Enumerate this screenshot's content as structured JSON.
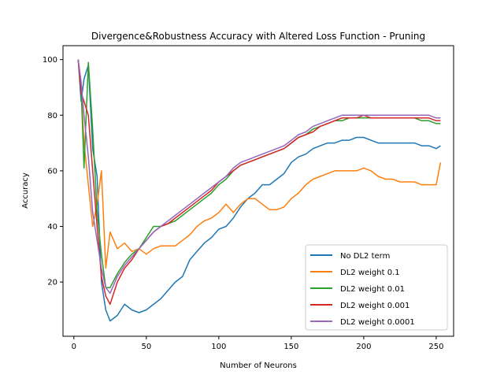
{
  "chart_data": {
    "type": "line",
    "title": "Divergence&Robustness Accuracy with Altered Loss Function - Pruning",
    "xlabel": "Number of Neurons",
    "ylabel": "Accuracy",
    "xlim": [
      -7.5,
      262
    ],
    "ylim": [
      0.5,
      105
    ],
    "xticks": [
      0,
      50,
      100,
      150,
      200,
      250
    ],
    "yticks": [
      20,
      40,
      60,
      80,
      100
    ],
    "grid": false,
    "legend_position": "lower-right",
    "series": [
      {
        "name": "No DL2 term",
        "color": "#1f77b4",
        "x": [
          3,
          5,
          7,
          10,
          13,
          16,
          19,
          22,
          25,
          30,
          35,
          40,
          45,
          50,
          55,
          60,
          65,
          70,
          75,
          80,
          85,
          90,
          95,
          100,
          105,
          110,
          115,
          120,
          125,
          130,
          135,
          140,
          145,
          150,
          155,
          160,
          165,
          170,
          175,
          180,
          185,
          190,
          195,
          200,
          205,
          210,
          215,
          220,
          225,
          230,
          235,
          240,
          245,
          250,
          253
        ],
        "y": [
          100,
          85,
          93,
          98,
          68,
          58,
          20,
          10,
          6,
          8,
          12,
          10,
          9,
          10,
          12,
          14,
          17,
          20,
          22,
          28,
          31,
          34,
          36,
          39,
          40,
          43,
          47,
          50,
          52,
          55,
          55,
          57,
          59,
          63,
          65,
          66,
          68,
          69,
          70,
          70,
          71,
          71,
          72,
          72,
          71,
          70,
          70,
          70,
          70,
          70,
          70,
          69,
          69,
          68,
          69
        ]
      },
      {
        "name": "DL2 weight 0.1",
        "color": "#ff7f0e",
        "x": [
          3,
          5,
          7,
          10,
          13,
          16,
          19,
          22,
          25,
          30,
          35,
          40,
          45,
          50,
          55,
          60,
          65,
          70,
          75,
          80,
          85,
          90,
          95,
          100,
          105,
          110,
          115,
          120,
          125,
          130,
          135,
          140,
          145,
          150,
          155,
          160,
          165,
          170,
          175,
          180,
          185,
          190,
          195,
          200,
          205,
          210,
          215,
          220,
          225,
          230,
          235,
          240,
          245,
          250,
          253
        ],
        "y": [
          100,
          90,
          70,
          55,
          40,
          48,
          60,
          25,
          38,
          32,
          34,
          31,
          32,
          30,
          32,
          33,
          33,
          33,
          35,
          37,
          40,
          42,
          43,
          45,
          48,
          45,
          48,
          50,
          50,
          48,
          46,
          46,
          47,
          50,
          52,
          55,
          57,
          58,
          59,
          60,
          60,
          60,
          60,
          61,
          60,
          58,
          57,
          57,
          56,
          56,
          56,
          55,
          55,
          55,
          63
        ]
      },
      {
        "name": "DL2 weight 0.01",
        "color": "#2ca02c",
        "x": [
          3,
          5,
          7,
          10,
          13,
          16,
          19,
          22,
          25,
          30,
          35,
          40,
          45,
          50,
          55,
          60,
          65,
          70,
          75,
          80,
          85,
          90,
          95,
          100,
          105,
          110,
          115,
          120,
          125,
          130,
          135,
          140,
          145,
          150,
          155,
          160,
          165,
          170,
          175,
          180,
          185,
          190,
          195,
          200,
          205,
          210,
          215,
          220,
          225,
          230,
          235,
          240,
          245,
          250,
          253
        ],
        "y": [
          100,
          90,
          61,
          99,
          75,
          45,
          30,
          18,
          18,
          23,
          27,
          30,
          32,
          36,
          40,
          40,
          41,
          42,
          44,
          46,
          48,
          50,
          52,
          55,
          57,
          60,
          62,
          63,
          64,
          65,
          66,
          67,
          68,
          70,
          72,
          73,
          75,
          76,
          77,
          78,
          78,
          79,
          79,
          79,
          79,
          79,
          79,
          79,
          79,
          79,
          79,
          78,
          78,
          77,
          77
        ]
      },
      {
        "name": "DL2 weight 0.001",
        "color": "#d62728",
        "x": [
          3,
          5,
          7,
          10,
          13,
          16,
          19,
          22,
          25,
          30,
          35,
          40,
          45,
          50,
          55,
          60,
          65,
          70,
          75,
          80,
          85,
          90,
          95,
          100,
          105,
          110,
          115,
          120,
          125,
          130,
          135,
          140,
          145,
          150,
          155,
          160,
          165,
          170,
          175,
          180,
          185,
          190,
          195,
          200,
          205,
          210,
          215,
          220,
          225,
          230,
          235,
          240,
          245,
          250,
          253
        ],
        "y": [
          100,
          88,
          85,
          80,
          60,
          40,
          22,
          15,
          12,
          20,
          25,
          28,
          32,
          35,
          38,
          40,
          41,
          43,
          45,
          47,
          49,
          51,
          53,
          56,
          58,
          60,
          62,
          63,
          64,
          65,
          66,
          67,
          68,
          70,
          72,
          73,
          74,
          76,
          77,
          78,
          79,
          79,
          79,
          80,
          79,
          79,
          79,
          79,
          79,
          79,
          79,
          79,
          79,
          78,
          78
        ]
      },
      {
        "name": "DL2 weight 0.0001",
        "color": "#9467bd",
        "x": [
          3,
          5,
          7,
          10,
          13,
          16,
          19,
          22,
          25,
          30,
          35,
          40,
          45,
          50,
          55,
          60,
          65,
          70,
          75,
          80,
          85,
          90,
          95,
          100,
          105,
          110,
          115,
          120,
          125,
          130,
          135,
          140,
          145,
          150,
          155,
          160,
          165,
          170,
          175,
          180,
          185,
          190,
          195,
          200,
          205,
          210,
          215,
          220,
          225,
          230,
          235,
          240,
          245,
          250,
          253
        ],
        "y": [
          100,
          92,
          80,
          65,
          45,
          35,
          25,
          18,
          16,
          22,
          26,
          29,
          32,
          35,
          38,
          40,
          42,
          44,
          46,
          48,
          50,
          52,
          54,
          56,
          58,
          61,
          63,
          64,
          65,
          66,
          67,
          68,
          69,
          71,
          73,
          74,
          76,
          77,
          78,
          79,
          80,
          80,
          80,
          80,
          80,
          80,
          80,
          80,
          80,
          80,
          80,
          80,
          80,
          79,
          79
        ]
      }
    ]
  }
}
